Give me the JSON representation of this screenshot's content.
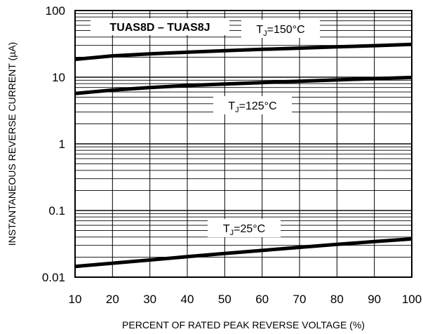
{
  "chart_data": {
    "type": "line",
    "title": "TUAS8D – TUAS8J",
    "xlabel": "PERCENT OF RATED PEAK REVERSE VOLTAGE (%)",
    "ylabel": "INSTANTANEOUS REVERSE CURRENT (µA)",
    "xlim": [
      10,
      100
    ],
    "ylim": [
      0.01,
      100
    ],
    "yscale": "log",
    "grid": true,
    "x_ticks": [
      "10",
      "20",
      "30",
      "40",
      "50",
      "60",
      "70",
      "80",
      "90",
      "100"
    ],
    "y_ticks": [
      "0.01",
      "0.1",
      "1",
      "10",
      "100"
    ],
    "x": [
      10,
      20,
      30,
      40,
      50,
      60,
      70,
      80,
      90,
      100
    ],
    "series": [
      {
        "name": "TJ=150°C",
        "label_main": "T",
        "label_sub": "J",
        "label_rest": "=150°C",
        "values": [
          18.5,
          20.9,
          22.4,
          23.7,
          25.0,
          26.2,
          27.3,
          28.5,
          29.7,
          31.0
        ]
      },
      {
        "name": "TJ=125°C",
        "label_main": "T",
        "label_sub": "J",
        "label_rest": "=125°C",
        "values": [
          5.7,
          6.4,
          7.0,
          7.5,
          7.9,
          8.3,
          8.7,
          9.1,
          9.5,
          9.9
        ]
      },
      {
        "name": "TJ=25°C",
        "label_main": "T",
        "label_sub": "J",
        "label_rest": "=25°C",
        "values": [
          0.0145,
          0.0162,
          0.0181,
          0.0203,
          0.0227,
          0.0252,
          0.028,
          0.031,
          0.0342,
          0.0375
        ]
      }
    ]
  },
  "colors": {
    "curve": "#000000",
    "grid": "#000000",
    "background": "#ffffff"
  }
}
